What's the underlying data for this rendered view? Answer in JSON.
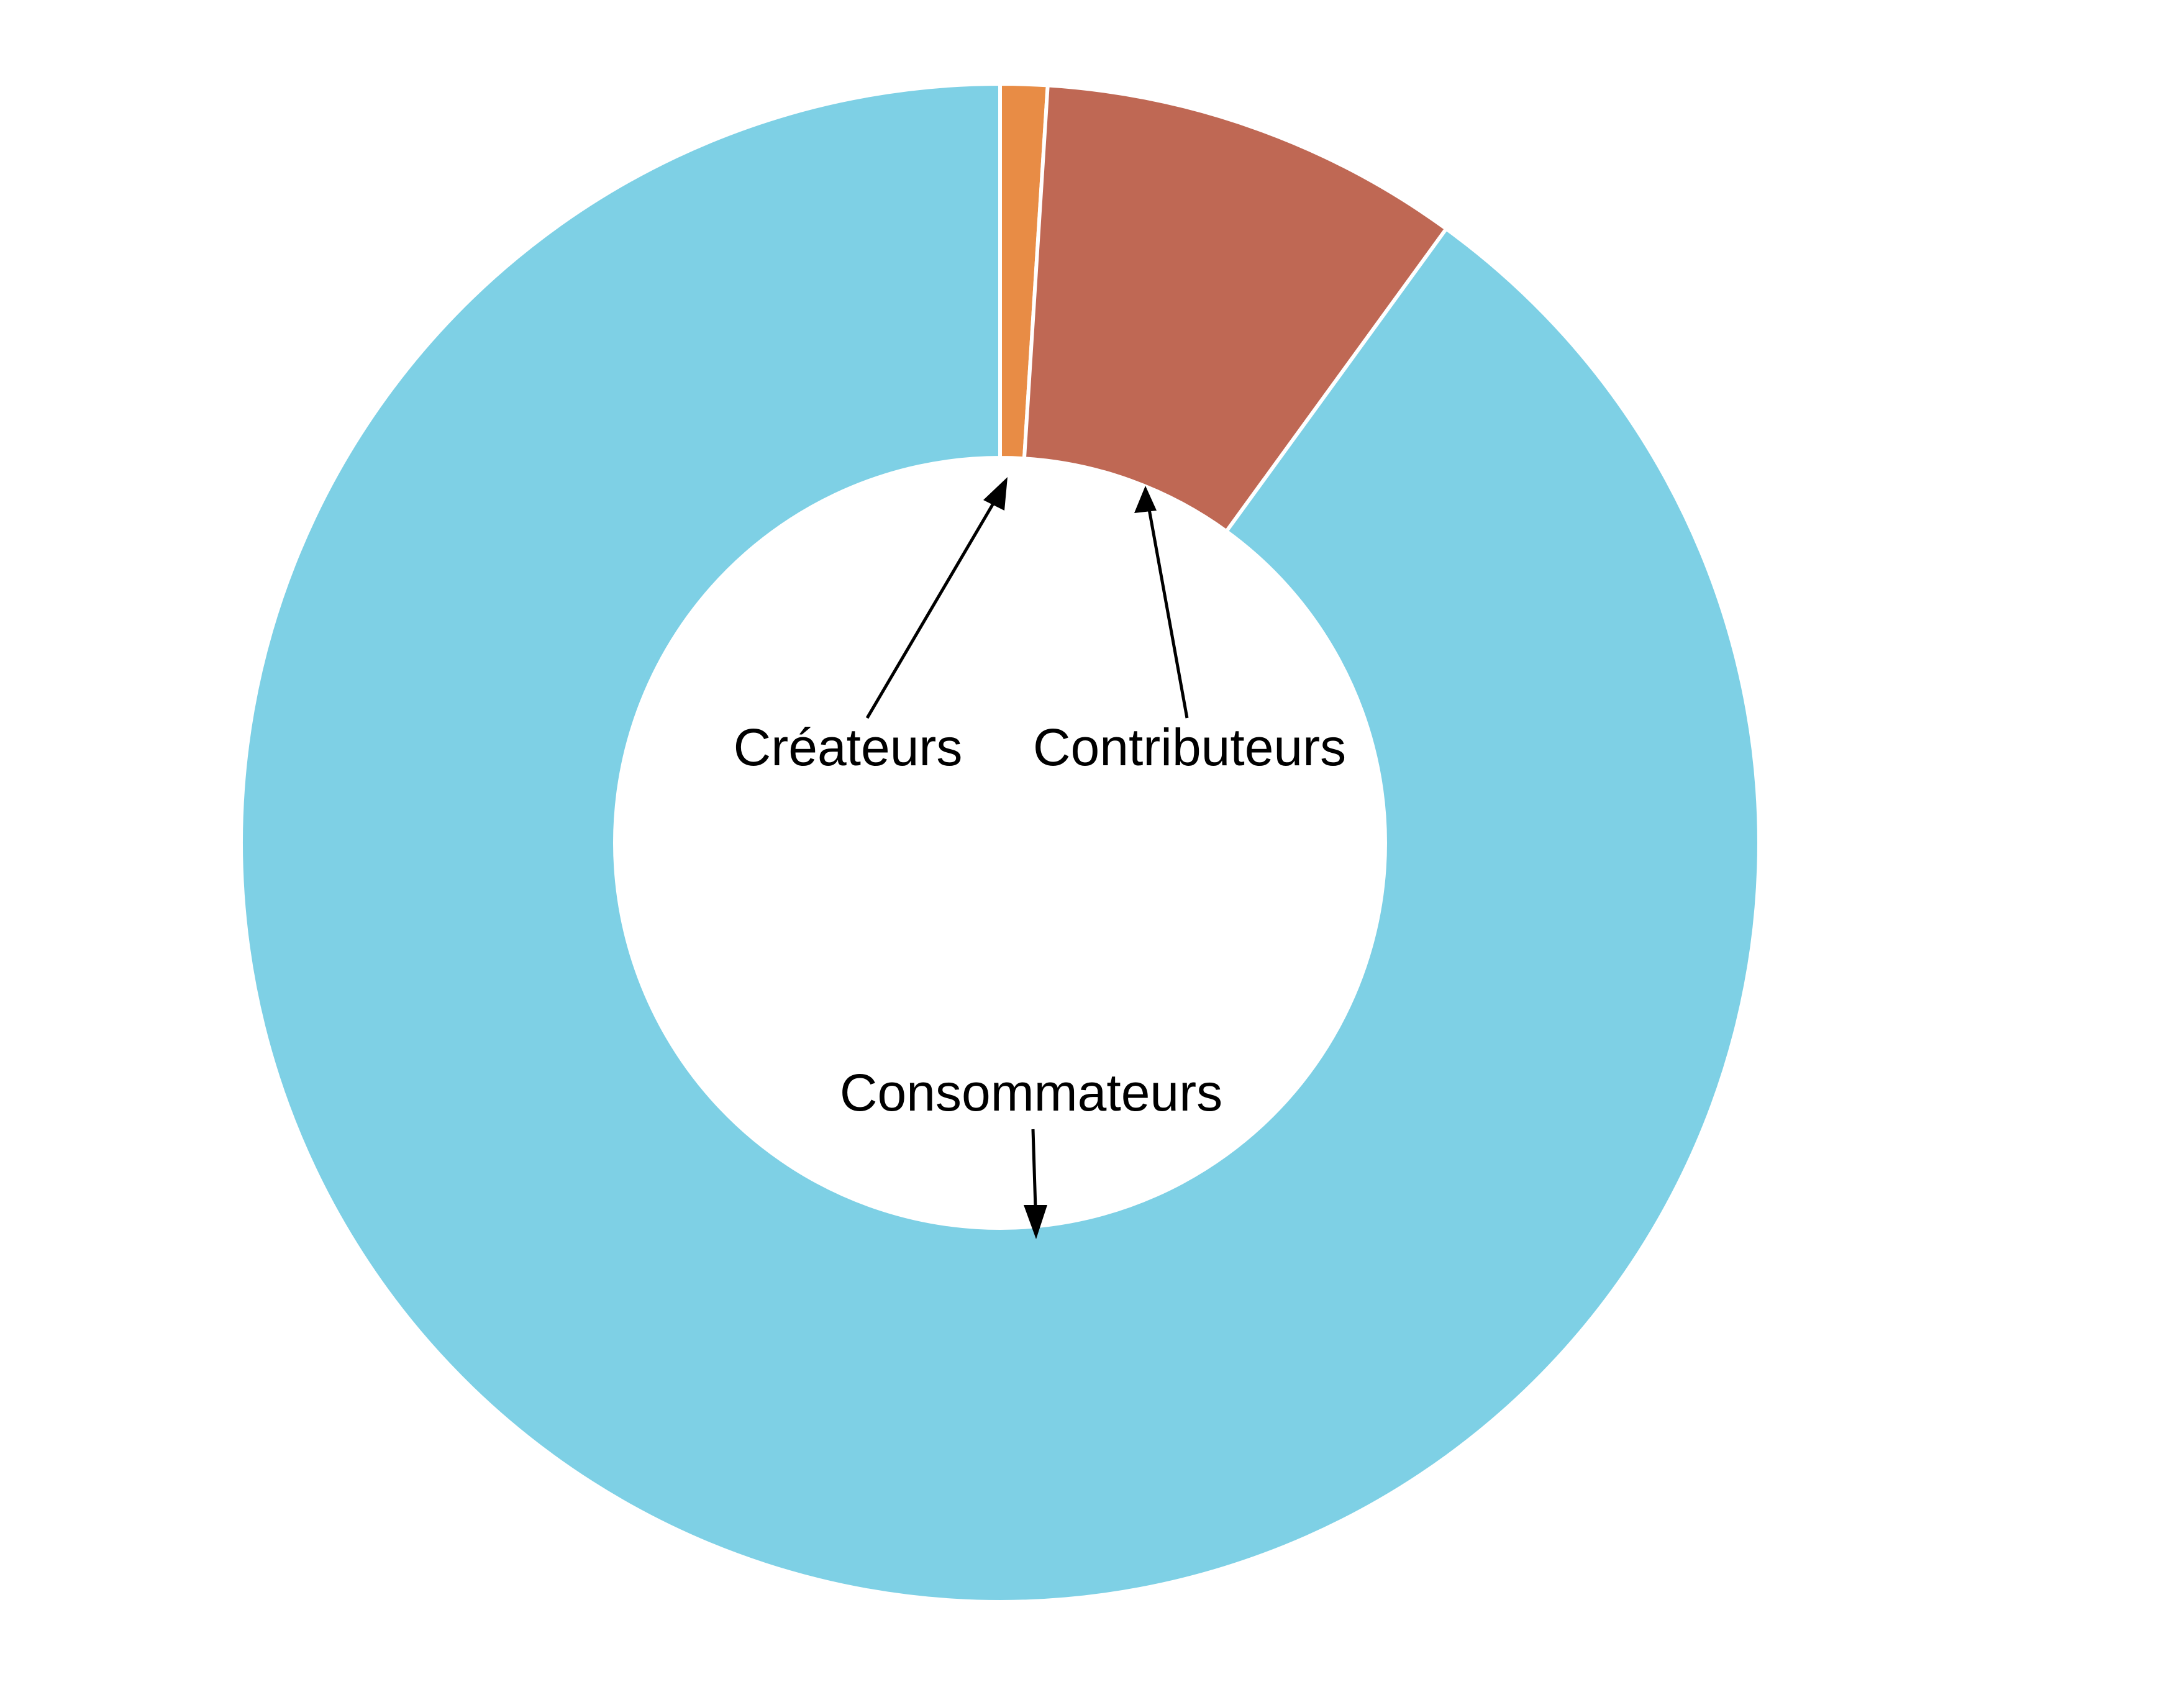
{
  "chart_data": {
    "type": "pie",
    "style": "donut",
    "title": "",
    "legend": "none",
    "slices": [
      {
        "label": "Créateurs",
        "value": 1,
        "color": "#E88C45"
      },
      {
        "label": "Contributeurs",
        "value": 9,
        "color": "#BF6854"
      },
      {
        "label": "Consommateurs",
        "value": 90,
        "color": "#7ED0E5"
      }
    ]
  }
}
